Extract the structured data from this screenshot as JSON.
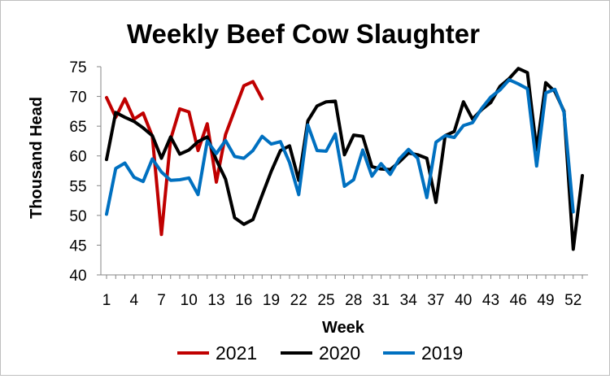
{
  "chart_data": {
    "type": "line",
    "title": "Weekly Beef Cow Slaughter",
    "xlabel": "Week",
    "ylabel": "Thousand Head",
    "xlim": [
      1,
      53
    ],
    "ylim": [
      40,
      75
    ],
    "yticks": [
      40,
      45,
      50,
      55,
      60,
      65,
      70,
      75
    ],
    "xticks": [
      1,
      4,
      7,
      10,
      13,
      16,
      19,
      22,
      25,
      28,
      31,
      34,
      37,
      40,
      43,
      46,
      49,
      52
    ],
    "grid": false,
    "legend": "bottom",
    "series": [
      {
        "name": "2021",
        "color": "#c00000",
        "x": [
          1,
          2,
          3,
          4,
          5,
          6,
          7,
          8,
          9,
          10,
          11,
          12,
          13,
          14,
          15,
          16,
          17,
          18
        ],
        "values": [
          69.8,
          66.5,
          69.6,
          66.2,
          67.2,
          63.3,
          46.8,
          62.8,
          67.9,
          67.4,
          60.9,
          65.4,
          55.6,
          63.6,
          67.7,
          71.8,
          72.5,
          69.6
        ]
      },
      {
        "name": "2020",
        "color": "#000000",
        "x": [
          1,
          2,
          3,
          4,
          5,
          6,
          7,
          8,
          9,
          10,
          11,
          12,
          13,
          14,
          15,
          16,
          17,
          18,
          19,
          20,
          21,
          22,
          23,
          24,
          25,
          26,
          27,
          28,
          29,
          30,
          31,
          32,
          33,
          34,
          35,
          36,
          37,
          38,
          39,
          40,
          41,
          42,
          43,
          44,
          45,
          46,
          47,
          48,
          49,
          50,
          51,
          52,
          53
        ],
        "values": [
          59.4,
          67.3,
          66.5,
          65.8,
          64.7,
          63.4,
          59.6,
          63.2,
          60.3,
          61.0,
          62.4,
          63.2,
          59.3,
          56.1,
          49.6,
          48.5,
          49.3,
          53.4,
          57.4,
          60.9,
          61.7,
          55.9,
          65.9,
          68.4,
          69.1,
          69.2,
          60.2,
          63.5,
          63.3,
          58.2,
          57.8,
          57.7,
          59.0,
          60.5,
          60.2,
          59.6,
          52.2,
          63.4,
          64.1,
          69.1,
          66.2,
          67.8,
          69.0,
          71.7,
          73.0,
          74.7,
          74.0,
          61.0,
          72.3,
          70.8,
          67.5,
          44.3,
          56.7
        ]
      },
      {
        "name": "2019",
        "color": "#0070c0",
        "x": [
          1,
          2,
          3,
          4,
          5,
          6,
          7,
          8,
          9,
          10,
          11,
          12,
          13,
          14,
          15,
          16,
          17,
          18,
          19,
          20,
          21,
          22,
          23,
          24,
          25,
          26,
          27,
          28,
          29,
          30,
          31,
          32,
          33,
          34,
          35,
          36,
          37,
          38,
          39,
          40,
          41,
          42,
          43,
          44,
          45,
          46,
          47,
          48,
          49,
          50,
          51,
          52
        ],
        "values": [
          50.2,
          57.9,
          58.8,
          56.4,
          55.7,
          59.5,
          57.3,
          55.9,
          56.0,
          56.3,
          53.5,
          62.5,
          60.4,
          62.6,
          59.9,
          59.6,
          60.9,
          63.3,
          62.0,
          62.4,
          58.9,
          53.5,
          65.2,
          60.9,
          60.8,
          63.7,
          54.9,
          56.0,
          61.0,
          56.6,
          58.7,
          56.9,
          59.5,
          61.1,
          59.6,
          53.0,
          62.3,
          63.4,
          63.1,
          65.1,
          65.6,
          68.0,
          69.9,
          71.1,
          72.8,
          72.1,
          71.3,
          58.3,
          70.6,
          71.2,
          67.3,
          50.6
        ]
      }
    ]
  }
}
